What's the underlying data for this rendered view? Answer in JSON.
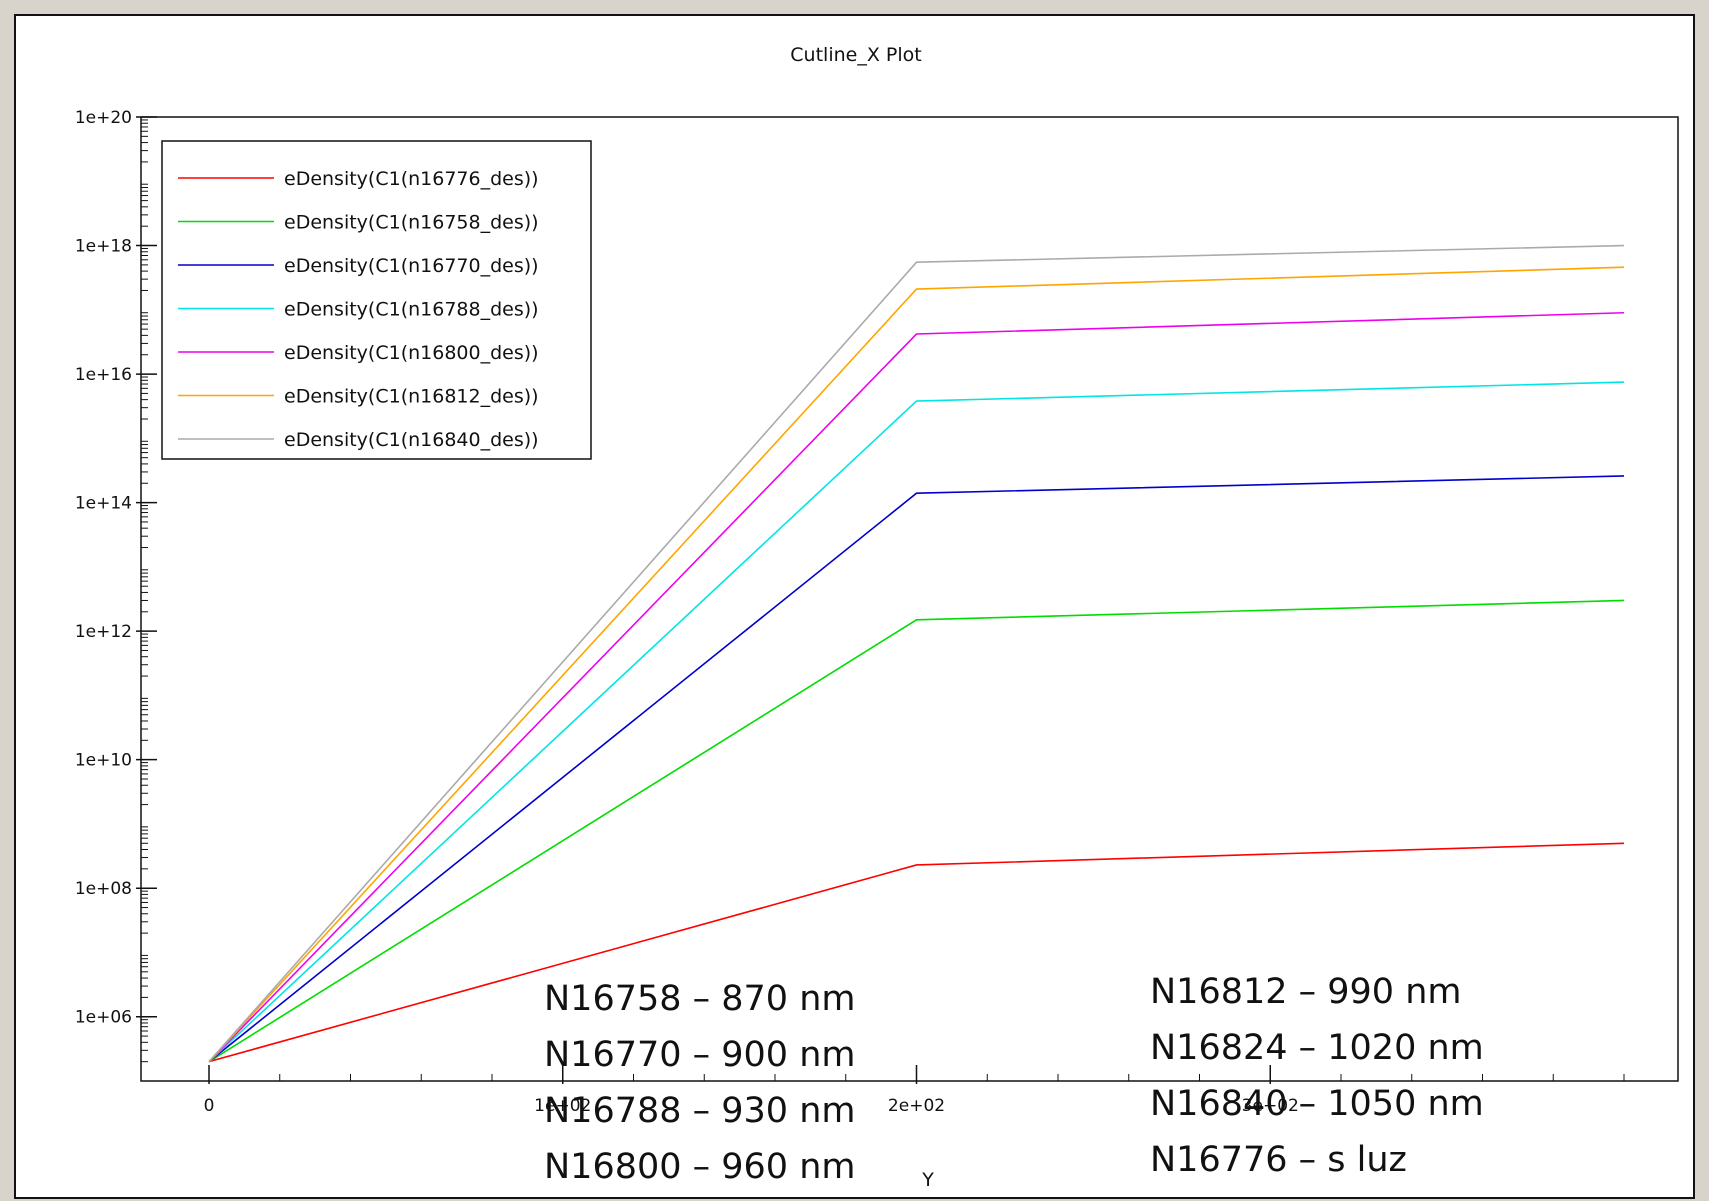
{
  "chart_data": {
    "type": "line",
    "title": "Cutline_X Plot",
    "xlabel": "Y",
    "ylabel": "",
    "y_scale": "log",
    "xlim": [
      0,
      410
    ],
    "ylim": [
      100000.0,
      1e+20
    ],
    "x_ticks": [
      {
        "value": 0,
        "label": "0"
      },
      {
        "value": 100,
        "label": "1e+02"
      },
      {
        "value": 200,
        "label": "2e+02"
      },
      {
        "value": 300,
        "label": "3e+02"
      }
    ],
    "y_ticks": [
      {
        "value": 1000000.0,
        "label": "1e+06"
      },
      {
        "value": 100000000.0,
        "label": "1e+08"
      },
      {
        "value": 10000000000.0,
        "label": "1e+10"
      },
      {
        "value": 1000000000000.0,
        "label": "1e+12"
      },
      {
        "value": 100000000000000.0,
        "label": "1e+14"
      },
      {
        "value": 1e+16,
        "label": "1e+16"
      },
      {
        "value": 1e+18,
        "label": "1e+18"
      },
      {
        "value": 1e+20,
        "label": "1e+20"
      }
    ],
    "grid": false,
    "legend_position": "top-left",
    "series": [
      {
        "name": "eDensity(C1(n16776_des))",
        "color": "#ff0000",
        "x": [
          0,
          200,
          400
        ],
        "y": [
          200000.0,
          230000000.0,
          500000000.0
        ]
      },
      {
        "name": "eDensity(C1(n16758_des))",
        "color": "#00dd00",
        "x": [
          0,
          200,
          400
        ],
        "y": [
          200000.0,
          1500000000000.0,
          3000000000000.0
        ]
      },
      {
        "name": "eDensity(C1(n16770_des))",
        "color": "#0000cc",
        "x": [
          0,
          200,
          400
        ],
        "y": [
          200000.0,
          140000000000000.0,
          260000000000000.0
        ]
      },
      {
        "name": "eDensity(C1(n16788_des))",
        "color": "#00e5e5",
        "x": [
          0,
          200,
          400
        ],
        "y": [
          200000.0,
          3800000000000000.0,
          7500000000000000.0
        ]
      },
      {
        "name": "eDensity(C1(n16800_des))",
        "color": "#ee00ee",
        "x": [
          0,
          200,
          400
        ],
        "y": [
          200000.0,
          4.2e+16,
          9e+16
        ]
      },
      {
        "name": "eDensity(C1(n16812_des))",
        "color": "#ffa500",
        "x": [
          0,
          200,
          400
        ],
        "y": [
          200000.0,
          2.1e+17,
          4.6e+17
        ]
      },
      {
        "name": "eDensity(C1(n16840_des))",
        "color": "#aaaaaa",
        "x": [
          0,
          200,
          400
        ],
        "y": [
          200000.0,
          5.5e+17,
          1e+18
        ]
      }
    ]
  },
  "notes": {
    "left": [
      "N16758 – 870 nm",
      "N16770 – 900 nm",
      "N16788 – 930 nm",
      "N16800 – 960 nm"
    ],
    "right": [
      "N16812 – 990 nm",
      "N16824 – 1020 nm",
      "N16840 – 1050 nm",
      "N16776 – s luz"
    ]
  }
}
